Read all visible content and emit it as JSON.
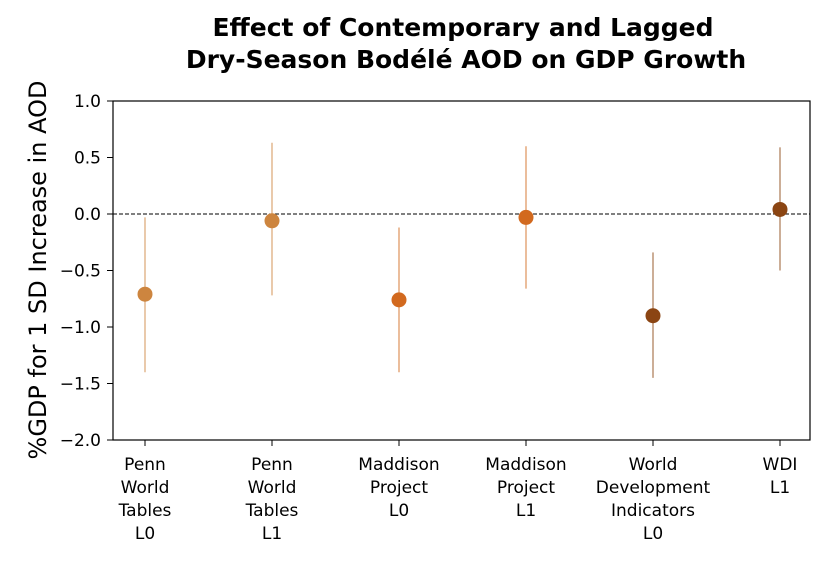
{
  "chart_data": {
    "type": "scatter",
    "title_lines": [
      "Effect of Contemporary and Lagged",
      "Dry-Season Bodélé AOD on GDP Growth"
    ],
    "ylabel": "%GDP for 1 SD Increase in AOD",
    "xlabel": "",
    "ylim": [
      -2.0,
      1.0
    ],
    "yticks": [
      "1.0",
      "0.5",
      "0.0",
      "−0.5",
      "−1.0",
      "−1.5",
      "−2.0"
    ],
    "ytick_values": [
      1.0,
      0.5,
      0.0,
      -0.5,
      -1.0,
      -1.5,
      -2.0
    ],
    "reference_line": {
      "y": 0.0,
      "style": "dashed"
    },
    "grid": false,
    "categories": [
      {
        "lines": [
          "Penn",
          "World",
          "Tables",
          "L0"
        ]
      },
      {
        "lines": [
          "Penn",
          "World",
          "Tables",
          "L1"
        ]
      },
      {
        "lines": [
          "Maddison",
          "Project",
          "L0"
        ]
      },
      {
        "lines": [
          "Maddison",
          "Project",
          "L1"
        ]
      },
      {
        "lines": [
          "World",
          "Development",
          "Indicators",
          "L0"
        ]
      },
      {
        "lines": [
          "WDI",
          "L1"
        ]
      }
    ],
    "points": [
      {
        "estimate": -0.71,
        "ci_low": -1.4,
        "ci_high": -0.03,
        "color": "#cd853f"
      },
      {
        "estimate": -0.06,
        "ci_low": -0.72,
        "ci_high": 0.63,
        "color": "#cd853f"
      },
      {
        "estimate": -0.76,
        "ci_low": -1.4,
        "ci_high": -0.12,
        "color": "#d2691e"
      },
      {
        "estimate": -0.03,
        "ci_low": -0.66,
        "ci_high": 0.6,
        "color": "#d2691e"
      },
      {
        "estimate": -0.9,
        "ci_low": -1.45,
        "ci_high": -0.34,
        "color": "#8b4513"
      },
      {
        "estimate": 0.04,
        "ci_low": -0.5,
        "ci_high": 0.59,
        "color": "#8b4513"
      }
    ]
  }
}
